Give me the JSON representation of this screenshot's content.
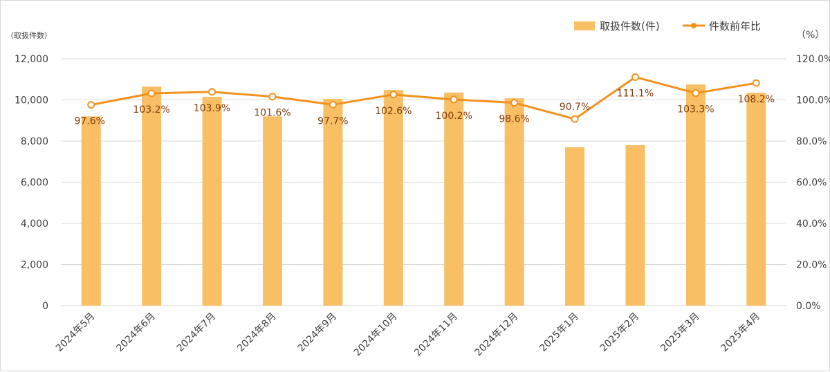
{
  "chart_data": {
    "type": "bar",
    "categories": [
      "2024年5月",
      "2024年6月",
      "2024年7月",
      "2024年8月",
      "2024年9月",
      "2024年10月",
      "2024年11月",
      "2024年12月",
      "2025年1月",
      "2025年2月",
      "2025年3月",
      "2025年4月"
    ],
    "series": [
      {
        "name": "取扱件数(件)",
        "type": "bar",
        "axis": "left",
        "values": [
          9200,
          10650,
          10150,
          9200,
          10050,
          10480,
          10360,
          10080,
          7700,
          7800,
          10750,
          10350
        ]
      },
      {
        "name": "件数前年比",
        "type": "line",
        "axis": "right",
        "values": [
          97.6,
          103.2,
          103.9,
          101.6,
          97.7,
          102.6,
          100.2,
          98.6,
          90.7,
          111.1,
          103.3,
          108.2
        ],
        "labels": [
          "97.6%",
          "103.2%",
          "103.9%",
          "101.6%",
          "97.7%",
          "102.6%",
          "100.2%",
          "98.6%",
          "90.7%",
          "111.1%",
          "103.3%",
          "108.2%"
        ]
      }
    ],
    "ylim_left": [
      0,
      12000
    ],
    "ylim_right": [
      0,
      120
    ],
    "yticks_left": [
      "0",
      "2,000",
      "4,000",
      "6,000",
      "8,000",
      "10,000",
      "12,000"
    ],
    "yticks_right": [
      "0.0%",
      "20.0%",
      "40.0%",
      "60.0%",
      "80.0%",
      "100.0%",
      "120.0%"
    ],
    "ylabel_left": "（取扱件数）",
    "ylabel_right": "（%）",
    "grid": true,
    "legend_position": "top-right",
    "colors": {
      "bar": "#f9bf65",
      "line": "#f3921f",
      "label": "#843c0c",
      "grid": "#d9d9d9",
      "text": "#404040"
    }
  }
}
